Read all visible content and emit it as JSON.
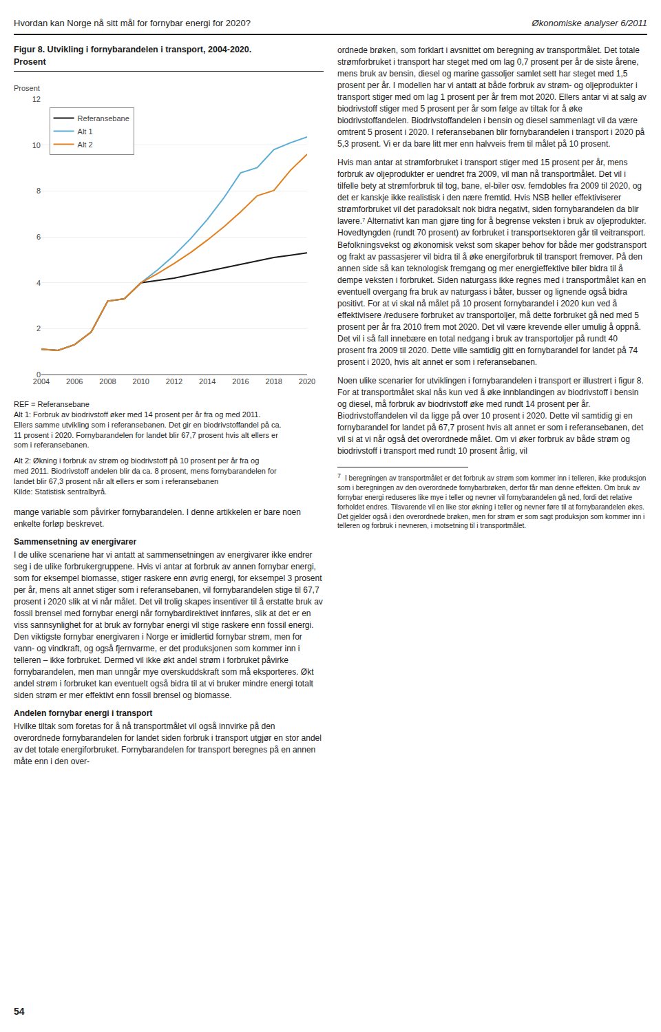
{
  "chart_data": {
    "type": "line",
    "title": "Figur 8. Utvikling i fornybarandelen i transport, 2004-2020.",
    "subtitle": "Prosent",
    "ylabel": "Prosent",
    "x": [
      2004,
      2005,
      2006,
      2007,
      2008,
      2009,
      2010,
      2011,
      2012,
      2013,
      2014,
      2015,
      2016,
      2017,
      2018,
      2019,
      2020
    ],
    "series": [
      {
        "name": "Referansebane",
        "color": "#1a1a1a",
        "values": [
          1.1,
          1.05,
          1.3,
          1.85,
          3.2,
          3.3,
          4.0,
          4.1,
          4.2,
          4.35,
          4.5,
          4.65,
          4.8,
          4.95,
          5.1,
          5.2,
          5.3
        ]
      },
      {
        "name": "Alt 1",
        "color": "#5badd6",
        "values": [
          1.1,
          1.05,
          1.3,
          1.85,
          3.2,
          3.3,
          4.0,
          4.56,
          5.2,
          5.93,
          6.76,
          7.71,
          8.79,
          9.02,
          9.8,
          10.1,
          10.35
        ]
      },
      {
        "name": "Alt 2",
        "color": "#e08020",
        "values": [
          1.1,
          1.05,
          1.3,
          1.85,
          3.2,
          3.3,
          4.0,
          4.4,
          4.84,
          5.32,
          5.86,
          6.44,
          7.09,
          7.79,
          8.02,
          8.9,
          9.6
        ]
      }
    ],
    "xlim": [
      2004,
      2020
    ],
    "xticks": [
      2004,
      2006,
      2008,
      2010,
      2012,
      2014,
      2016,
      2018,
      2020
    ],
    "ylim": [
      0,
      12
    ],
    "yticks": [
      0,
      2,
      4,
      6,
      8,
      10,
      12
    ],
    "grid": "y",
    "legend": "upper left",
    "annotations": [
      "Hvordan kan Norge nå sitt mål for fornybar energi for 2020?",
      "Økonomiske analyser 6/2011",
      "REF = Referansebane",
      "Alt 1: Forbruk av biodrivstoff øker med 14 prosent per år fra og med 2011.",
      "Ellers samme utvikling som i referansebanen. Det gir en biodrivstoffandel på ca.",
      "11 prosent i 2020. Fornybarandelen for landet blir 67,7 prosent hvis alt ellers er",
      "som i referansebanen.",
      "Alt 2: Økning i forbruk av strøm og biodrivstoff på 10 prosent per år fra og",
      "med 2011. Biodrivstoff andelen blir da ca. 8 prosent, mens fornybarandelen for",
      "landet blir 67,3 prosent når alt ellers er som i referansebanen",
      "Kilde: Statistisk sentralbyrå.",
      "mange variable som påvirker fornybarandelen. I denne artikkelen er bare noen enkelte forløp beskrevet.",
      "Sammensetning av energivarer",
      "I de ulike scenariene har vi antatt at sammensetningen av energivarer ikke endrer seg i de ulike forbrukergruppene. Hvis vi antar at forbruk av annen fornybar energi, som for eksempel biomasse, stiger raskere enn øvrig energi, for eksempel 3 prosent per år, mens alt annet stiger som i referansebanen, vil fornybarandelen stige til 67,7 prosent i 2020 slik at vi når målet. Det vil trolig skapes insentiver til å erstatte bruk av fossil brensel med fornybar energi når fornybardirektivet innføres, slik at det er en viss sannsynlighet for at bruk av fornybar energi vil stige raskere enn fossil energi. Den viktigste fornybar energivaren i Norge er imidlertid fornybar strøm, men for vann- og vindkraft, og også fjernvarme, er det produksjonen som kommer inn i telleren – ikke forbruket. Dermed vil ikke økt andel strøm i forbruket påvirke fornybarandelen, men man unngår mye overskuddskraft som må eksporteres. Økt andel strøm i forbruket kan eventuelt også bidra til at vi bruker mindre energi totalt siden strøm er mer effektivt enn fossil brensel og biomasse.",
      "Andelen fornybar energi i transport",
      "Hvilke tiltak som foretas for å nå transportmålet vil også innvirke på den overordnede fornybarandelen for landet siden forbruk i transport utgjør en stor andel av det totale energiforbruket. Fornybarandelen for transport beregnes på en annen måte enn i den over-",
      "ordnede brøken, som forklart i avsnittet om beregning av transportmålet. Det totale strømforbruket i transport har steget med om lag 0,7 prosent per år de siste årene, mens bruk av bensin, diesel og marine gassoljer samlet sett har steget med 1,5 prosent per år. I modellen har vi antatt at både forbruk av strøm- og oljeprodukter i transport stiger med om lag 1 prosent per år frem mot 2020. Ellers antar vi at salg av biodrivstoff stiger med 5 prosent per år som følge av tiltak for å øke biodrivstoffandelen. Biodrivstoffandelen i bensin og diesel sammenlagt vil da være omtrent 5 prosent i 2020. I referansebanen blir fornybarandelen i transport i 2020 på 5,3 prosent. Vi er da bare litt mer enn halvveis frem til målet på 10 prosent.",
      "Hvis man antar at strømforbruket i transport stiger med 15 prosent per år, mens forbruk av oljeprodukter er uendret fra 2009, vil man nå transportmålet. Det vil i tilfelle bety at strømforbruk til tog, bane, el-biler osv. femdobles fra 2009 til 2020, og det er kanskje ikke realistisk i den nære fremtid. Hvis NSB heller effektiviserer strømforbruket vil det paradoksalt nok bidra negativt, siden fornybarandelen da blir lavere.⁷ Alternativt kan man gjøre ting for å begrense veksten i bruk av oljeprodukter. Hovedtyngden (rundt 70 prosent) av forbruket i transportsektoren går til veitransport. Befolkningsvekst og økonomisk vekst som skaper behov for både mer godstransport og frakt av passasjerer vil bidra til å øke energiforbruk til transport fremover. På den annen side så kan teknologisk fremgang og mer energieffektive biler bidra til å dempe veksten i forbruket. Siden naturgass ikke regnes med i transportmålet  kan en eventuell overgang fra bruk av naturgass i båter, busser og lignende også bidra positivt. For at vi skal nå målet på 10 prosent fornybarandel i 2020 kun ved å effektivisere /redusere forbruket av transportoljer, må dette forbruket gå ned med 5 prosent per år fra 2010 frem mot 2020. Det vil være krevende eller umulig å oppnå. Det vil i så fall innebære en total nedgang i bruk av transportoljer på rundt 40 prosent fra 2009 til 2020. Dette ville samtidig gitt en fornybarandel for landet på 74 prosent i 2020, hvis alt annet er som i referansebanen.",
      "Noen ulike scenarier for utviklingen i fornybarandelen i transport er illustrert i figur 8. For at transportmålet skal nås kun ved å øke innblandingen av biodrivstoff i bensin og diesel, må forbruk av biodrivstoff øke med rundt 14 prosent per år. Biodrivstoffandelen vil da ligge på over 10 prosent i 2020. Dette vil samtidig gi en fornybarandel for landet på 67,7 prosent hvis alt annet er som i referansebanen, det vil si at vi når også det overordnede målet. Om vi øker forbruk av både strøm og biodrivstoff i transport med rundt 10 prosent årlig, vil",
      "7",
      "I beregningen av transportmålet er det forbruk av strøm som kommer inn i telleren, ikke produksjon som i beregningen av den overordnede fornybarbrøken, derfor får man denne effekten. Om bruk av fornybar energi reduseres like mye i teller og nevner vil fornybarandelen gå ned, fordi det relative forholdet endres. Tilsvarende vil en like stor økning i teller og nevner føre til at fornybarandelen økes. Det gjelder også i den overordnede brøken, men for strøm er som sagt produksjon som kommer inn i telleren og forbruk i nevneren, i motsetning til i transportmålet.",
      "54"
    ]
  }
}
